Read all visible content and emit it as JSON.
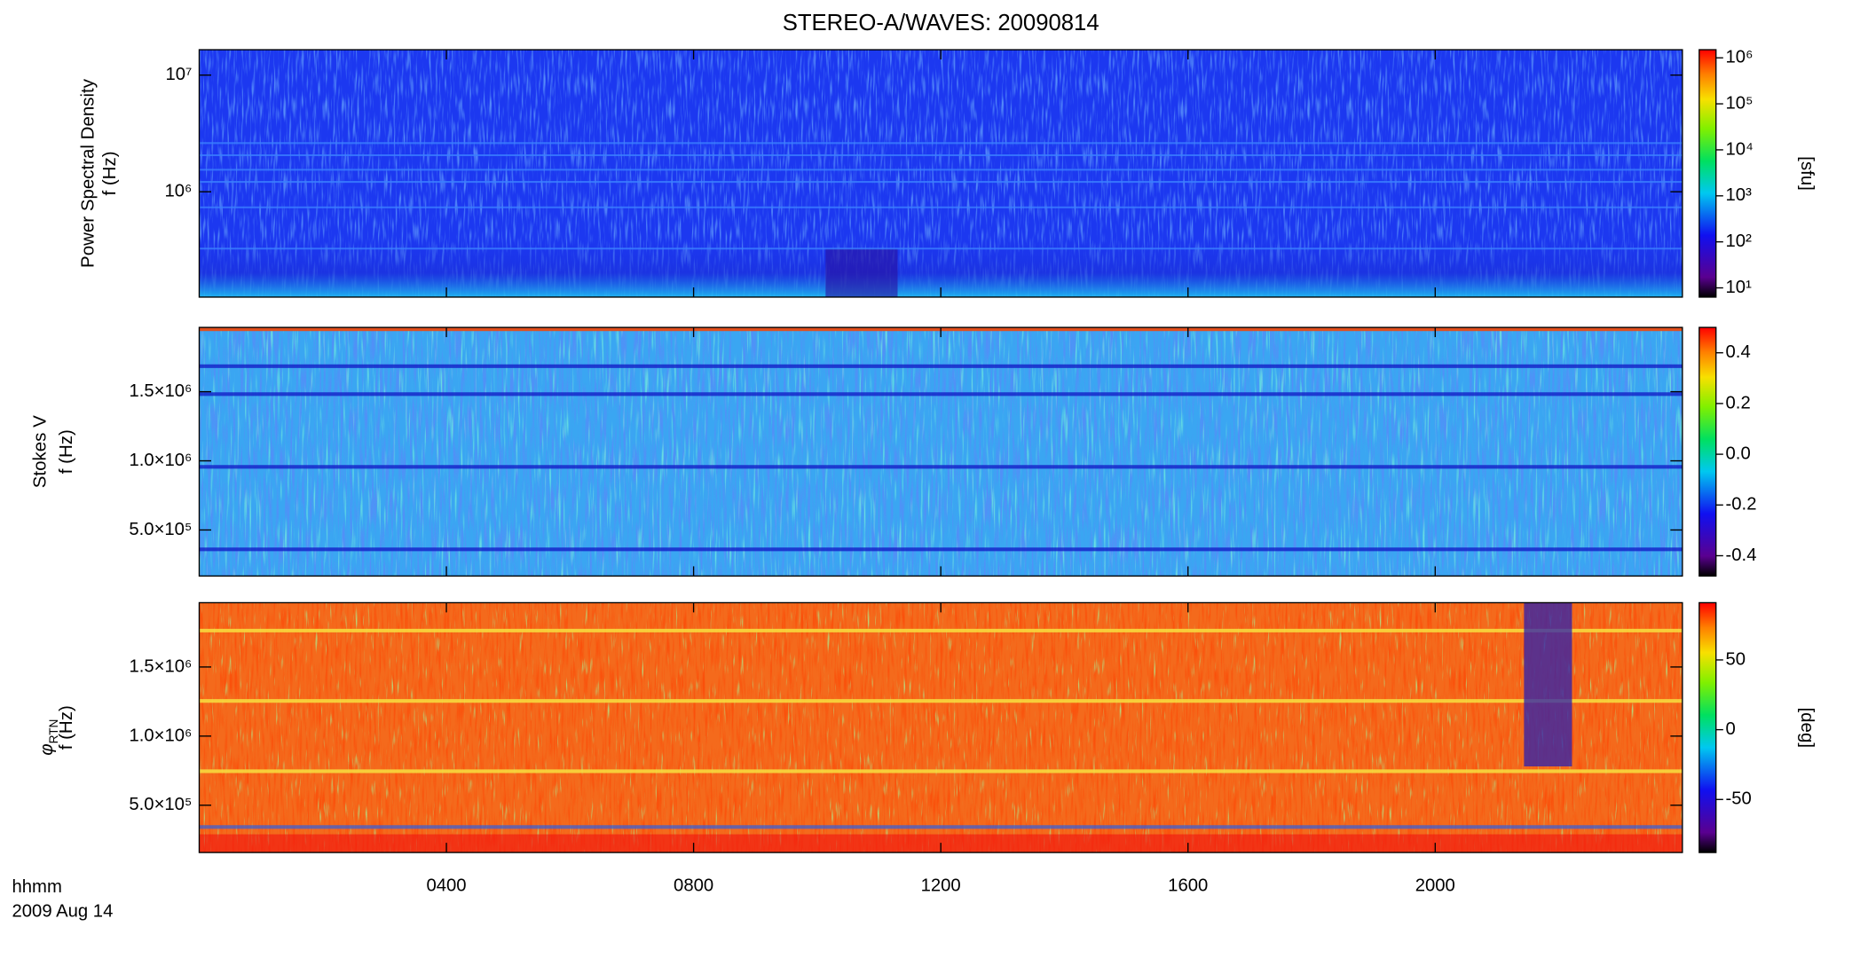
{
  "chart_data": [
    {
      "type": "heatmap",
      "title": "STEREO-A/WAVES: 20090814",
      "ylabel": "Power Spectral Density",
      "ylabel2": "f (Hz)",
      "ylog": true,
      "ylim": [
        125000,
        16500000
      ],
      "yticks": [
        {
          "value": 1000000,
          "label": "10⁶"
        },
        {
          "value": 10000000,
          "label": "10⁷"
        }
      ],
      "colorbar": {
        "label": "[sfu]",
        "log": true,
        "lim": [
          6.3,
          1500000
        ],
        "ticks": [
          {
            "value": 10,
            "label": "10¹"
          },
          {
            "value": 100,
            "label": "10²"
          },
          {
            "value": 1000,
            "label": "10³"
          },
          {
            "value": 10000,
            "label": "10⁴"
          },
          {
            "value": 100000,
            "label": "10⁵"
          },
          {
            "value": 1000000,
            "label": "10⁶"
          }
        ]
      }
    },
    {
      "type": "heatmap",
      "ylabel": "Stokes V",
      "ylabel2": "f (Hz)",
      "ylog": false,
      "ylim": [
        167000,
        1965000
      ],
      "yticks": [
        {
          "value": 500000,
          "label": "5.0×10⁵"
        },
        {
          "value": 1000000,
          "label": "1.0×10⁶"
        },
        {
          "value": 1500000,
          "label": "1.5×10⁶"
        }
      ],
      "colorbar": {
        "log": false,
        "lim": [
          -0.48,
          0.5
        ],
        "ticks": [
          -0.4,
          -0.2,
          {
            "value": 0,
            "label": "0.0"
          },
          0.2,
          0.4
        ]
      }
    },
    {
      "type": "heatmap",
      "ylabel": "φ",
      "ylabel_subscript": "RTN",
      "ylabel2": "f (Hz)",
      "ylog": false,
      "ylim": [
        158000,
        1965000
      ],
      "yticks": [
        {
          "value": 500000,
          "label": "5.0×10⁵"
        },
        {
          "value": 1000000,
          "label": "1.0×10⁶"
        },
        {
          "value": 1500000,
          "label": "1.5×10⁶"
        }
      ],
      "colorbar": {
        "label": "[deg]",
        "log": false,
        "lim": [
          -88,
          91
        ],
        "ticks": [
          -50,
          0,
          50
        ]
      },
      "xlabel": "hhmm",
      "date": "2009 Aug 14",
      "xlim": [
        0,
        24
      ],
      "xticks": [
        {
          "value": 4,
          "label": "0400"
        },
        {
          "value": 8,
          "label": "0800"
        },
        {
          "value": 12,
          "label": "1200"
        },
        {
          "value": 16,
          "label": "1600"
        },
        {
          "value": 20,
          "label": "2000"
        }
      ]
    }
  ]
}
